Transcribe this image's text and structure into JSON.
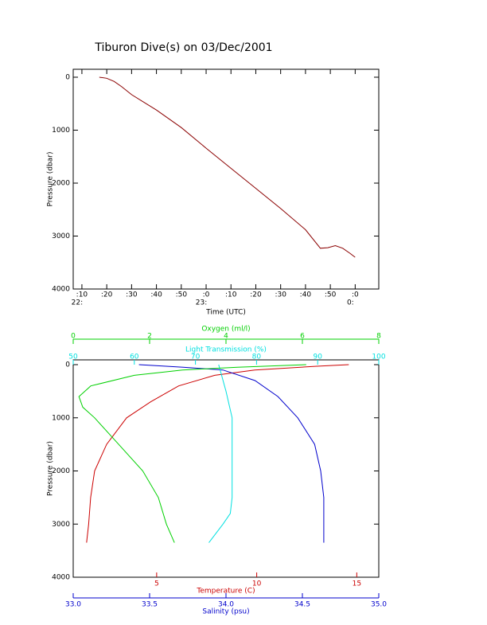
{
  "chart_data": [
    {
      "type": "line",
      "title": "Tiburon Dive(s) on 03/Dec/2001",
      "xlabel": "Time (UTC)",
      "ylabel": "Pressure (dbar)",
      "xlim": [
        6.5,
        129.5
      ],
      "xticks": [
        {
          "value": 10,
          "label": ":10"
        },
        {
          "value": 20,
          "label": ":20"
        },
        {
          "value": 30,
          "label": ":30"
        },
        {
          "value": 40,
          "label": ":40"
        },
        {
          "value": 50,
          "label": ":50"
        },
        {
          "value": 60,
          "label": ":0"
        },
        {
          "value": 70,
          "label": ":10"
        },
        {
          "value": 80,
          "label": ":20"
        },
        {
          "value": 90,
          "label": ":30"
        },
        {
          "value": 100,
          "label": ":40"
        },
        {
          "value": 110,
          "label": ":50"
        },
        {
          "value": 120,
          "label": ":0"
        }
      ],
      "xtick_hours": [
        {
          "value": 10,
          "label": "22:"
        },
        {
          "value": 60,
          "label": "23:"
        },
        {
          "value": 120,
          "label": "0:"
        }
      ],
      "ylim": [
        -150,
        4000
      ],
      "y_inverted": true,
      "yticks": [
        0,
        1000,
        2000,
        3000,
        4000
      ],
      "series": [
        {
          "color": "#8b0000",
          "x": [
            17,
            20,
            23,
            26,
            30,
            40,
            50,
            60,
            70,
            80,
            90,
            100,
            106,
            109,
            112,
            115,
            118,
            120
          ],
          "values": [
            0,
            20,
            80,
            180,
            330,
            620,
            950,
            1340,
            1720,
            2100,
            2480,
            2880,
            3230,
            3220,
            3180,
            3230,
            3330,
            3400
          ]
        }
      ]
    },
    {
      "type": "profile",
      "ylabel": "Pressure (dbar)",
      "ylim": [
        -90,
        4000
      ],
      "y_inverted": true,
      "yticks": [
        0,
        1000,
        2000,
        3000,
        4000
      ],
      "series": [
        {
          "name": "Temperature (C)",
          "color": "#cc0000",
          "axis_side": "bottom",
          "xlim": [
            0.83,
            16.1
          ],
          "xticks": [
            5,
            10,
            15
          ],
          "x": [
            14.6,
            13.0,
            9.9,
            7.9,
            6.1,
            4.7,
            3.5,
            2.5,
            1.9,
            1.7,
            1.6,
            1.5
          ],
          "values": [
            0,
            30,
            100,
            200,
            400,
            700,
            1000,
            1500,
            2000,
            2500,
            3000,
            3350
          ]
        },
        {
          "name": "Salinity (psu)",
          "color": "#0000cc",
          "axis_side": "bottom",
          "xlim": [
            33,
            35
          ],
          "xticks": [
            {
              "value": 33,
              "label": "33.0"
            },
            {
              "value": 33.5,
              "label": "33.5"
            },
            {
              "value": 34,
              "label": "34.0"
            },
            {
              "value": 34.5,
              "label": "34.5"
            },
            {
              "value": 35,
              "label": "35.0"
            }
          ],
          "x": [
            33.43,
            33.72,
            33.98,
            34.19,
            34.34,
            34.47,
            34.58,
            34.62,
            34.64,
            34.64,
            34.64
          ],
          "values": [
            0,
            50,
            100,
            300,
            600,
            1000,
            1500,
            2000,
            2500,
            3000,
            3350
          ]
        },
        {
          "name": "Light Transmission (%)",
          "color": "#00e0e0",
          "axis_side": "top",
          "xlim": [
            50,
            100
          ],
          "xticks": [
            50,
            60,
            70,
            80,
            90,
            100
          ],
          "x": [
            73.8,
            75.0,
            76.0,
            76.0,
            76.0,
            75.7,
            74.5,
            72.2
          ],
          "values": [
            0,
            500,
            1000,
            1500,
            2500,
            2800,
            3000,
            3350
          ]
        },
        {
          "name": "Oxygen (ml/l)",
          "color": "#00d000",
          "axis_side": "top",
          "xlim": [
            0,
            8
          ],
          "xticks": [
            0,
            2,
            4,
            6,
            8
          ],
          "x": [
            6.1,
            4.3,
            2.86,
            1.6,
            0.46,
            0.15,
            0.25,
            0.56,
            1.19,
            1.82,
            2.23,
            2.44,
            2.65
          ],
          "values": [
            0,
            50,
            100,
            200,
            400,
            600,
            800,
            1000,
            1500,
            2000,
            2500,
            3000,
            3350
          ]
        }
      ]
    }
  ]
}
